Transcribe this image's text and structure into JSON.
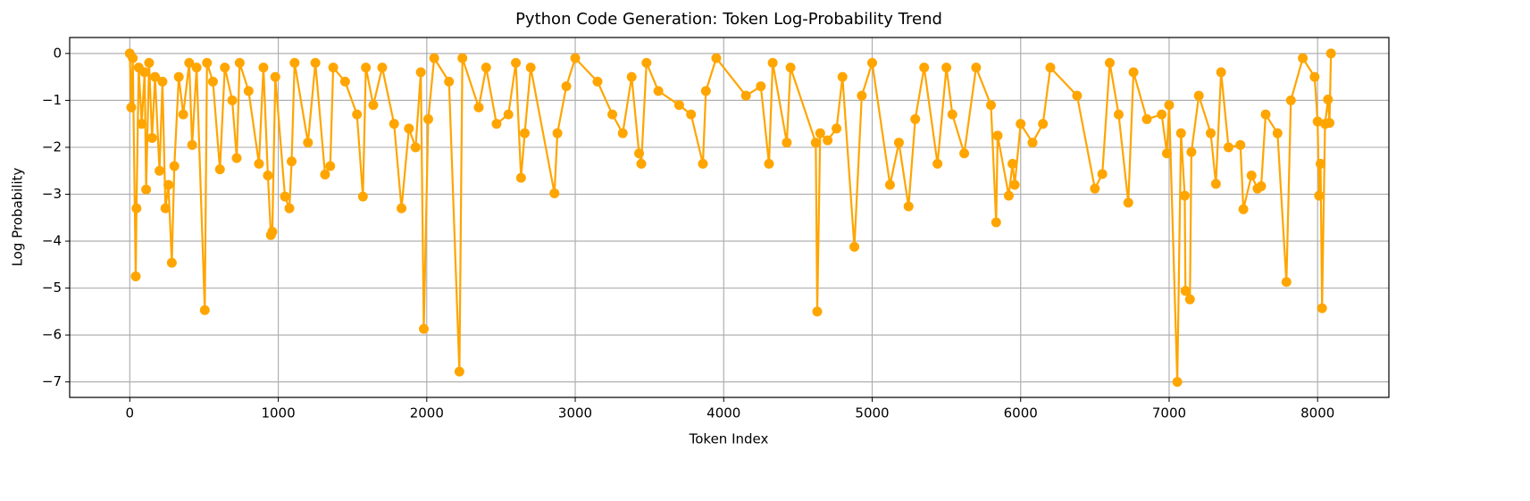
{
  "chart_data": {
    "type": "line",
    "title": "Python Code Generation: Token Log-Probability Trend",
    "xlabel": "Token Index",
    "ylabel": "Log Probability",
    "color": "#ffa500",
    "grid": true,
    "xlim": [
      -405,
      8480
    ],
    "ylim": [
      -7.33,
      0.34
    ],
    "xticks": [
      0,
      1000,
      2000,
      3000,
      4000,
      5000,
      6000,
      7000,
      8000
    ],
    "yticks": [
      0,
      {
        "value": -1,
        "label": "−1"
      },
      {
        "value": -2,
        "label": "−2"
      },
      {
        "value": -3,
        "label": "−3"
      },
      {
        "value": -4,
        "label": "−4"
      },
      {
        "value": -5,
        "label": "−5"
      },
      {
        "value": -6,
        "label": "−6"
      },
      {
        "value": -7,
        "label": "−7"
      }
    ],
    "x": [
      0,
      10,
      20,
      40,
      45,
      60,
      80,
      100,
      110,
      130,
      150,
      170,
      200,
      220,
      240,
      260,
      283,
      300,
      330,
      360,
      400,
      420,
      450,
      505,
      520,
      560,
      607,
      640,
      690,
      720,
      740,
      800,
      870,
      900,
      930,
      950,
      960,
      980,
      1045,
      1075,
      1090,
      1110,
      1200,
      1250,
      1315,
      1350,
      1370,
      1450,
      1530,
      1570,
      1590,
      1640,
      1700,
      1780,
      1830,
      1880,
      1925,
      1960,
      1980,
      2010,
      2050,
      2150,
      2220,
      2240,
      2350,
      2400,
      2470,
      2550,
      2600,
      2635,
      2660,
      2700,
      2860,
      2880,
      2940,
      3000,
      3150,
      3250,
      3320,
      3380,
      3430,
      3445,
      3480,
      3560,
      3700,
      3780,
      3860,
      3880,
      3950,
      4150,
      4250,
      4305,
      4330,
      4425,
      4450,
      4620,
      4630,
      4650,
      4700,
      4760,
      4800,
      4880,
      4930,
      5000,
      5120,
      5180,
      5245,
      5290,
      5350,
      5440,
      5500,
      5540,
      5620,
      5700,
      5800,
      5835,
      5845,
      5920,
      5945,
      5960,
      6000,
      6080,
      6150,
      6200,
      6380,
      6500,
      6550,
      6600,
      6660,
      6725,
      6760,
      6850,
      6950,
      6985,
      7000,
      7055,
      7080,
      7105,
      7110,
      7140,
      7150,
      7200,
      7280,
      7315,
      7350,
      7400,
      7480,
      7500,
      7555,
      7595,
      7620,
      7650,
      7730,
      7790,
      7820,
      7900,
      7980,
      8000,
      8010,
      8020,
      8030,
      8050,
      8070,
      8080,
      8090
    ],
    "values": [
      0,
      -1.15,
      -0.1,
      -4.75,
      -3.3,
      -0.3,
      -1.5,
      -0.4,
      -2.9,
      -0.2,
      -1.8,
      -0.5,
      -2.5,
      -0.6,
      -3.3,
      -2.8,
      -4.46,
      -2.4,
      -0.5,
      -1.3,
      -0.2,
      -1.95,
      -0.3,
      -5.47,
      -0.2,
      -0.6,
      -2.47,
      -0.3,
      -1.0,
      -2.23,
      -0.2,
      -0.8,
      -2.35,
      -0.3,
      -2.6,
      -3.87,
      -3.8,
      -0.5,
      -3.05,
      -3.3,
      -2.3,
      -0.2,
      -1.9,
      -0.2,
      -2.58,
      -2.4,
      -0.3,
      -0.6,
      -1.3,
      -3.05,
      -0.3,
      -1.1,
      -0.3,
      -1.5,
      -3.3,
      -1.6,
      -2.0,
      -0.4,
      -5.87,
      -1.4,
      -0.1,
      -0.6,
      -6.78,
      -0.1,
      -1.15,
      -0.3,
      -1.5,
      -1.3,
      -0.2,
      -2.65,
      -1.7,
      -0.3,
      -2.98,
      -1.7,
      -0.7,
      -0.1,
      -0.6,
      -1.3,
      -1.7,
      -0.5,
      -2.13,
      -2.35,
      -0.2,
      -0.8,
      -1.1,
      -1.3,
      -2.35,
      -0.8,
      -0.1,
      -0.9,
      -0.7,
      -2.35,
      -0.2,
      -1.9,
      -0.3,
      -1.9,
      -5.5,
      -1.7,
      -1.85,
      -1.6,
      -0.5,
      -4.12,
      -0.9,
      -0.2,
      -2.8,
      -1.9,
      -3.26,
      -1.4,
      -0.3,
      -2.35,
      -0.3,
      -1.3,
      -2.13,
      -0.3,
      -1.1,
      -3.6,
      -1.75,
      -3.03,
      -2.35,
      -2.8,
      -1.5,
      -1.9,
      -1.5,
      -0.3,
      -0.9,
      -2.88,
      -2.57,
      -0.2,
      -1.3,
      -3.18,
      -0.4,
      -1.4,
      -1.3,
      -2.13,
      -1.1,
      -7.0,
      -1.7,
      -3.03,
      -5.06,
      -5.24,
      -2.1,
      -0.9,
      -1.7,
      -2.78,
      -0.4,
      -2.0,
      -1.95,
      -3.32,
      -2.6,
      -2.88,
      -2.83,
      -1.3,
      -1.7,
      -4.87,
      -1.0,
      -0.1,
      -0.5,
      -1.45,
      -3.03,
      -2.35,
      -5.43,
      -1.5,
      -0.98,
      -1.48,
      0
    ]
  }
}
